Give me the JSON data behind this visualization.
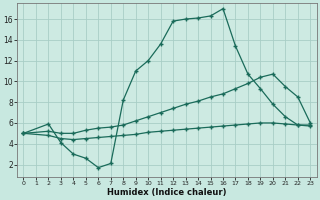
{
  "xlabel": "Humidex (Indice chaleur)",
  "background_color": "#c8e8e0",
  "plot_bg_color": "#cdeae2",
  "grid_color": "#a8cec6",
  "line_color": "#1a6b5a",
  "xlim": [
    -0.5,
    23.5
  ],
  "ylim": [
    0.8,
    17.5
  ],
  "yticks": [
    2,
    4,
    6,
    8,
    10,
    12,
    14,
    16
  ],
  "xticks": [
    0,
    1,
    2,
    3,
    4,
    5,
    6,
    7,
    8,
    9,
    10,
    11,
    12,
    13,
    14,
    15,
    16,
    17,
    18,
    19,
    20,
    21,
    22,
    23
  ],
  "line1_x": [
    0,
    2,
    3,
    4,
    5,
    6,
    7,
    8,
    9,
    10,
    11,
    12,
    13,
    14,
    15,
    16,
    17,
    18,
    19,
    20,
    21,
    22,
    23
  ],
  "line1_y": [
    5.0,
    5.9,
    4.1,
    3.0,
    2.6,
    1.7,
    2.1,
    8.2,
    11.0,
    12.0,
    13.6,
    15.8,
    16.0,
    16.1,
    16.3,
    17.0,
    13.4,
    10.7,
    9.3,
    7.8,
    6.6,
    5.8,
    5.8
  ],
  "line2_x": [
    0,
    2,
    3,
    4,
    5,
    6,
    7,
    8,
    9,
    10,
    11,
    12,
    13,
    14,
    15,
    16,
    17,
    18,
    19,
    20,
    21,
    22,
    23
  ],
  "line2_y": [
    5.0,
    5.2,
    5.0,
    5.0,
    5.3,
    5.5,
    5.6,
    5.8,
    6.2,
    6.6,
    7.0,
    7.4,
    7.8,
    8.1,
    8.5,
    8.8,
    9.3,
    9.8,
    10.4,
    10.7,
    9.5,
    8.5,
    6.0
  ],
  "line3_x": [
    0,
    2,
    3,
    4,
    5,
    6,
    7,
    8,
    9,
    10,
    11,
    12,
    13,
    14,
    15,
    16,
    17,
    18,
    19,
    20,
    21,
    22,
    23
  ],
  "line3_y": [
    5.0,
    4.8,
    4.5,
    4.4,
    4.5,
    4.6,
    4.7,
    4.8,
    4.9,
    5.1,
    5.2,
    5.3,
    5.4,
    5.5,
    5.6,
    5.7,
    5.8,
    5.9,
    6.0,
    6.0,
    5.9,
    5.8,
    5.7
  ]
}
